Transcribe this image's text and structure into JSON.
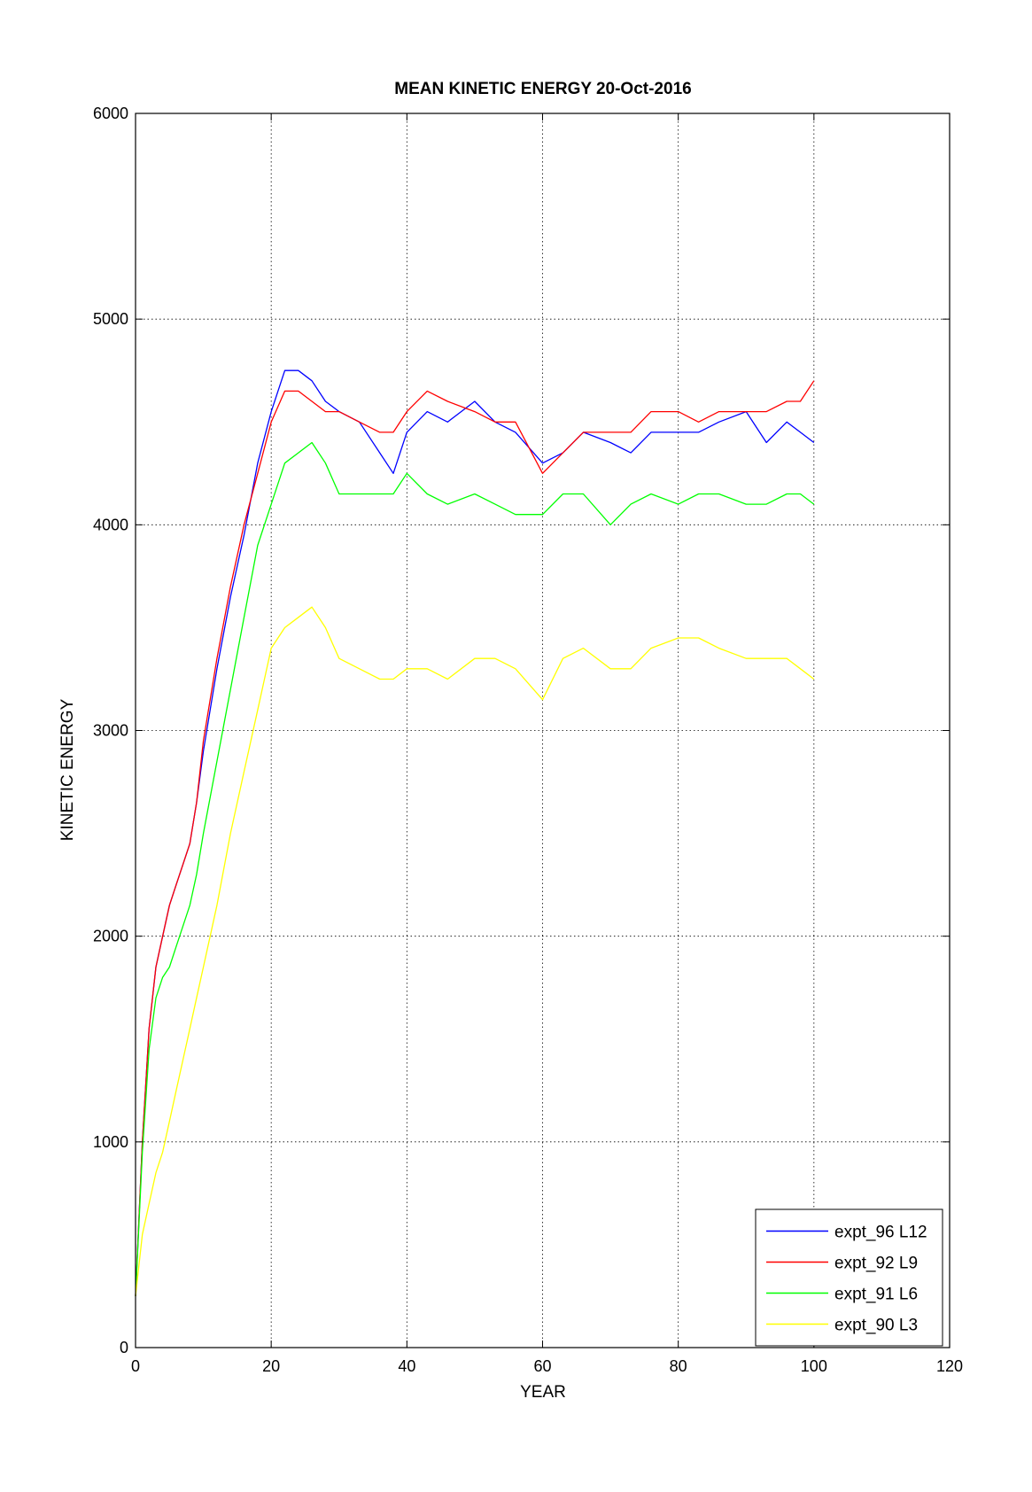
{
  "chart_data": {
    "type": "line",
    "title": "MEAN KINETIC ENERGY 20-Oct-2016",
    "xlabel": "YEAR",
    "ylabel": "KINETIC ENERGY",
    "xlim": [
      0,
      120
    ],
    "ylim": [
      0,
      6000
    ],
    "xticks": [
      0,
      20,
      40,
      60,
      80,
      100,
      120
    ],
    "yticks": [
      0,
      1000,
      2000,
      3000,
      4000,
      5000,
      6000
    ],
    "grid": true,
    "legend_position": "bottom-right",
    "series": [
      {
        "name": "expt_96 L12",
        "color": "#0000ff",
        "x": [
          0,
          1,
          2,
          3,
          4,
          5,
          6,
          7,
          8,
          9,
          10,
          12,
          14,
          16,
          18,
          20,
          22,
          24,
          26,
          28,
          30,
          33,
          36,
          38,
          40,
          43,
          46,
          50,
          53,
          56,
          60,
          63,
          66,
          70,
          73,
          76,
          80,
          83,
          86,
          90,
          93,
          96,
          98,
          100
        ],
        "y": [
          250,
          1000,
          1550,
          1850,
          2000,
          2150,
          2250,
          2350,
          2450,
          2650,
          2900,
          3300,
          3650,
          3950,
          4300,
          4550,
          4750,
          4750,
          4700,
          4600,
          4550,
          4500,
          4350,
          4250,
          4450,
          4550,
          4500,
          4600,
          4500,
          4450,
          4300,
          4350,
          4450,
          4400,
          4350,
          4450,
          4450,
          4450,
          4500,
          4550,
          4400,
          4500,
          4450,
          4400
        ]
      },
      {
        "name": "expt_92 L9",
        "color": "#ff0000",
        "x": [
          0,
          1,
          2,
          3,
          4,
          5,
          6,
          7,
          8,
          9,
          10,
          12,
          14,
          16,
          18,
          20,
          22,
          24,
          26,
          28,
          30,
          33,
          36,
          38,
          40,
          43,
          46,
          50,
          53,
          56,
          60,
          63,
          66,
          70,
          73,
          76,
          80,
          83,
          86,
          90,
          93,
          96,
          98,
          100
        ],
        "y": [
          250,
          1000,
          1550,
          1850,
          2000,
          2150,
          2250,
          2350,
          2450,
          2650,
          2950,
          3350,
          3700,
          4000,
          4250,
          4500,
          4650,
          4650,
          4600,
          4550,
          4550,
          4500,
          4450,
          4450,
          4550,
          4650,
          4600,
          4550,
          4500,
          4500,
          4250,
          4350,
          4450,
          4450,
          4450,
          4550,
          4550,
          4500,
          4550,
          4550,
          4550,
          4600,
          4600,
          4700
        ]
      },
      {
        "name": "expt_91 L6",
        "color": "#00ff00",
        "x": [
          0,
          1,
          2,
          3,
          4,
          5,
          6,
          7,
          8,
          9,
          10,
          12,
          14,
          16,
          18,
          20,
          22,
          24,
          26,
          28,
          30,
          33,
          36,
          38,
          40,
          43,
          46,
          50,
          53,
          56,
          60,
          63,
          66,
          70,
          73,
          76,
          80,
          83,
          86,
          90,
          93,
          96,
          98,
          100
        ],
        "y": [
          250,
          950,
          1450,
          1700,
          1800,
          1850,
          1950,
          2050,
          2150,
          2300,
          2500,
          2850,
          3200,
          3550,
          3900,
          4100,
          4300,
          4350,
          4400,
          4300,
          4150,
          4150,
          4150,
          4150,
          4250,
          4150,
          4100,
          4150,
          4100,
          4050,
          4050,
          4150,
          4150,
          4000,
          4100,
          4150,
          4100,
          4150,
          4150,
          4100,
          4100,
          4150,
          4150,
          4100
        ]
      },
      {
        "name": "expt_90 L3",
        "color": "#ffff00",
        "x": [
          0,
          1,
          2,
          3,
          4,
          5,
          6,
          7,
          8,
          9,
          10,
          12,
          14,
          16,
          18,
          20,
          22,
          24,
          26,
          28,
          30,
          33,
          36,
          38,
          40,
          43,
          46,
          50,
          53,
          56,
          60,
          63,
          66,
          70,
          73,
          76,
          80,
          83,
          86,
          90,
          93,
          96,
          98,
          100
        ],
        "y": [
          250,
          550,
          700,
          850,
          950,
          1100,
          1250,
          1400,
          1550,
          1700,
          1850,
          2150,
          2500,
          2800,
          3100,
          3400,
          3500,
          3550,
          3600,
          3500,
          3350,
          3300,
          3250,
          3250,
          3300,
          3300,
          3250,
          3350,
          3350,
          3300,
          3150,
          3350,
          3400,
          3300,
          3300,
          3400,
          3450,
          3450,
          3400,
          3350,
          3350,
          3350,
          3300,
          3250
        ]
      }
    ]
  }
}
